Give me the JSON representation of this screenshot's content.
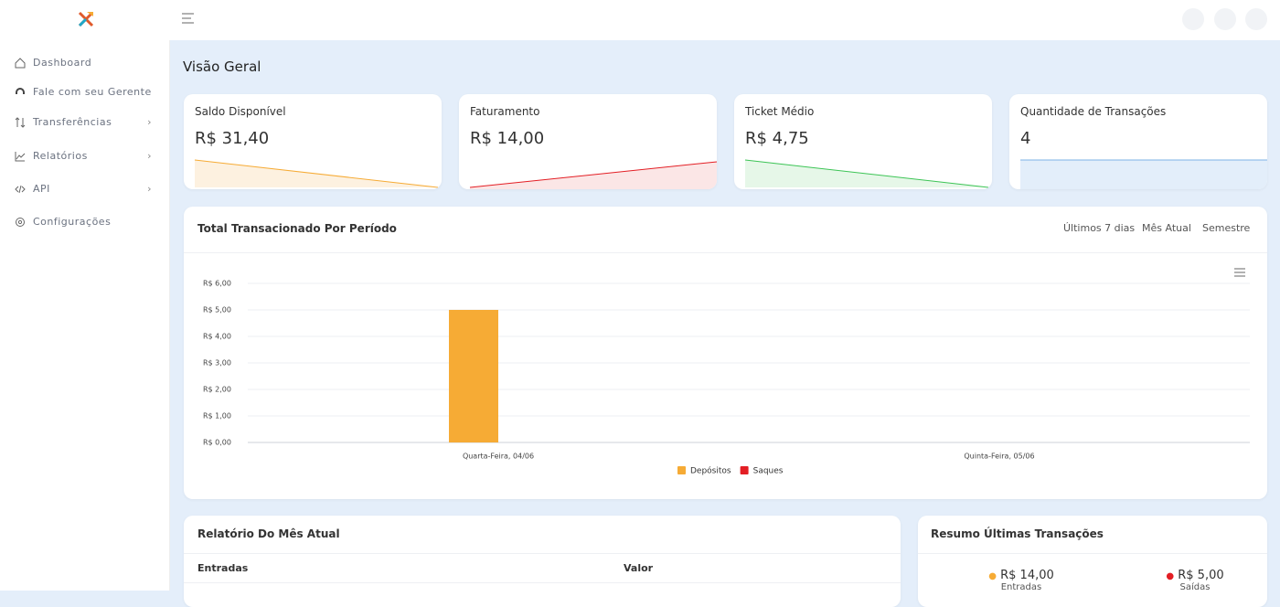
{
  "sidebar": {
    "menu": [
      "Dashboard",
      "Fale com seu Gerente",
      "Transferências",
      "Relatórios",
      "API",
      "Configurações"
    ]
  },
  "page_title": "Visão Geral",
  "cards": [
    {
      "label": "Saldo Disponível",
      "value": "R$ 31,40"
    },
    {
      "label": "Faturamento",
      "value": "R$ 14,00"
    },
    {
      "label": "Ticket Médio",
      "value": "R$ 4,75"
    },
    {
      "label": "Quantidade de Transações",
      "value": "4"
    }
  ],
  "period_filters": [
    "Últimos 7 dias",
    "Mês Atual",
    "Semestre"
  ],
  "chart_data": {
    "type": "bar",
    "title": "Total Transacionado Por Período",
    "categories": [
      "Quarta-Feira, 04/06",
      "Quinta-Feira, 05/06"
    ],
    "series": [
      {
        "name": "Depósitos",
        "color": "#f6ab35",
        "values": [
          5,
          0
        ]
      },
      {
        "name": "Saques",
        "color": "#e31e24",
        "values": [
          0,
          0
        ]
      }
    ],
    "ylim": [
      0,
      6
    ],
    "yticks": [
      {
        "value": 0,
        "label": "R$ 0,00"
      },
      {
        "value": 1,
        "label": "R$ 1,00"
      },
      {
        "value": 2,
        "label": "R$ 2,00"
      },
      {
        "value": 3,
        "label": "R$ 3,00"
      },
      {
        "value": 4,
        "label": "R$ 4,00"
      },
      {
        "value": 5,
        "label": "R$ 5,00"
      },
      {
        "value": 6,
        "label": "R$ 6,00"
      }
    ],
    "grid": true,
    "legend": "bottom"
  },
  "report": {
    "title": "Relatório Do Mês Atual",
    "columns": [
      "Entradas",
      "Valor"
    ]
  },
  "summary": {
    "title": "Resumo Últimas Transações",
    "items": [
      {
        "value": "R$ 14,00",
        "label": "Entradas",
        "color": "#f6ab35"
      },
      {
        "value": "R$ 5,00",
        "label": "Saídas",
        "color": "#e31e24"
      }
    ]
  }
}
